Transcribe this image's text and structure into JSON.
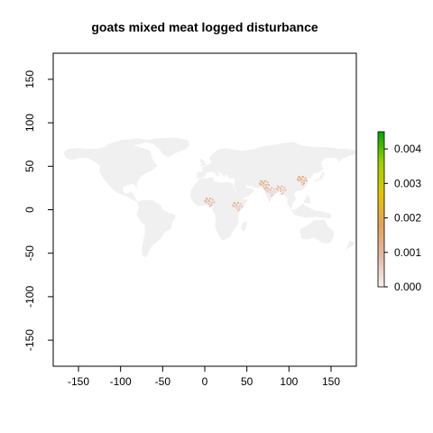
{
  "map": {
    "title": "goats mixed meat logged disturbance",
    "x_ticks": [
      "-150",
      "-100",
      "-50",
      "0",
      "50",
      "100",
      "150"
    ],
    "y_ticks": [
      "150",
      "100",
      "50",
      "0",
      "-50",
      "-100",
      "-150"
    ],
    "land_color": "#f0f0f0",
    "legend": {
      "ticks": [
        "0.004",
        "0.003",
        "0.002",
        "0.001",
        "0.000"
      ],
      "colors": [
        "#f2f2f2",
        "#e8b7a3",
        "#e3a35a",
        "#e4c600",
        "#9bd100",
        "#00a600"
      ]
    }
  },
  "chart_data": {
    "type": "heatmap",
    "title": "goats mixed meat logged disturbance",
    "xlabel": "",
    "ylabel": "",
    "xlim": [
      -180,
      180
    ],
    "ylim": [
      -180,
      180
    ],
    "x_ticks": [
      -150,
      -100,
      -50,
      0,
      50,
      100,
      150
    ],
    "y_ticks": [
      -150,
      -100,
      -50,
      0,
      50,
      100,
      150
    ],
    "colorbar": {
      "min": 0.0,
      "max": 0.0045,
      "ticks": [
        0.0,
        0.001,
        0.002,
        0.003,
        0.004
      ]
    },
    "hotspots": [
      {
        "region": "West Africa",
        "lon": 5,
        "lat": 10,
        "value": 0.0012
      },
      {
        "region": "East Africa",
        "lon": 38,
        "lat": 5,
        "value": 0.001
      },
      {
        "region": "Pakistan",
        "lon": 70,
        "lat": 30,
        "value": 0.0014
      },
      {
        "region": "India",
        "lon": 78,
        "lat": 22,
        "value": 0.0008
      },
      {
        "region": "Bangladesh",
        "lon": 90,
        "lat": 24,
        "value": 0.001
      },
      {
        "region": "Eastern China",
        "lon": 115,
        "lat": 35,
        "value": 0.0016
      }
    ]
  }
}
